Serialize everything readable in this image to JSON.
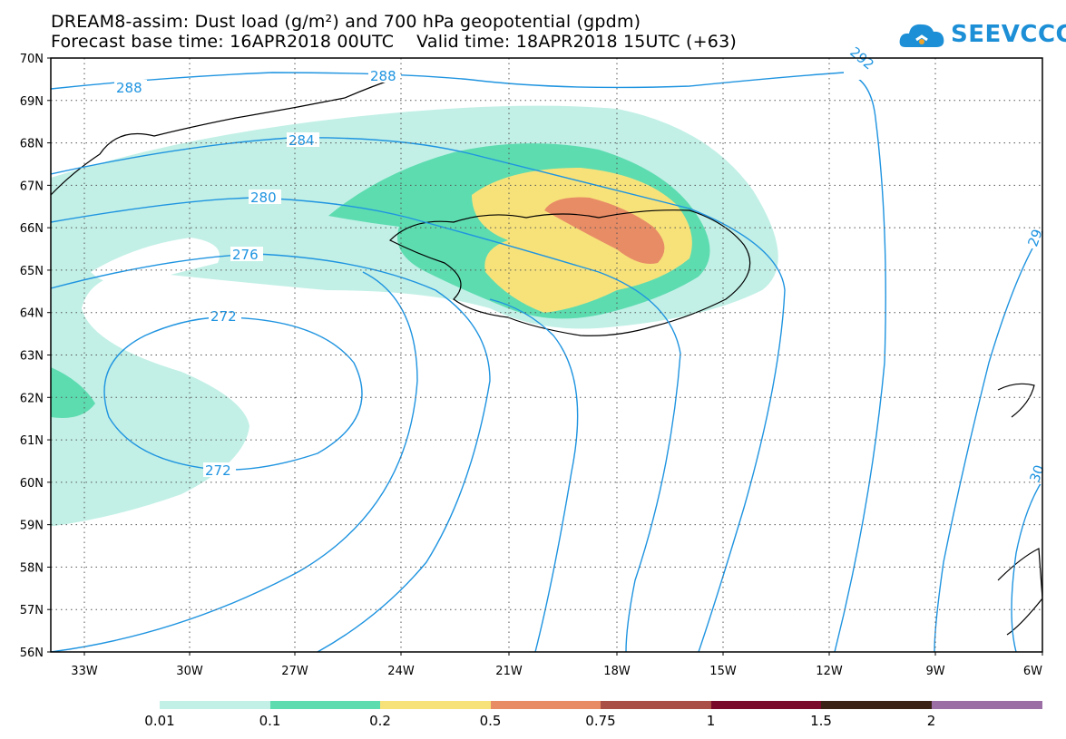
{
  "header": {
    "title_line1": "DREAM8-assim: Dust load (g/m²) and 700 hPa geopotential (gpdm)",
    "title_line2": "Forecast base time: 16APR2018 00UTC    Valid time: 18APR2018 15UTC (+63)",
    "logo_text": "SEEVCCC"
  },
  "axes": {
    "lat_labels": [
      "70N",
      "69N",
      "68N",
      "67N",
      "66N",
      "65N",
      "64N",
      "63N",
      "62N",
      "61N",
      "60N",
      "59N",
      "58N",
      "57N",
      "56N"
    ],
    "lon_labels": [
      "33W",
      "30W",
      "27W",
      "24W",
      "21W",
      "18W",
      "15W",
      "12W",
      "9W",
      "6W"
    ]
  },
  "contours": {
    "labels": [
      "288",
      "288",
      "292",
      "284",
      "280",
      "276",
      "272",
      "272",
      "29",
      "30"
    ],
    "color": "#1f94e0"
  },
  "colorbar": {
    "labels": [
      "0.01",
      "0.1",
      "0.2",
      "0.5",
      "0.75",
      "1",
      "1.5",
      "2"
    ],
    "colors": [
      "#c2f0e6",
      "#5ddcb0",
      "#f7e27a",
      "#e88c66",
      "#a94f45",
      "#7a0a2c",
      "#3b2216",
      "#9b6fa6"
    ]
  }
}
